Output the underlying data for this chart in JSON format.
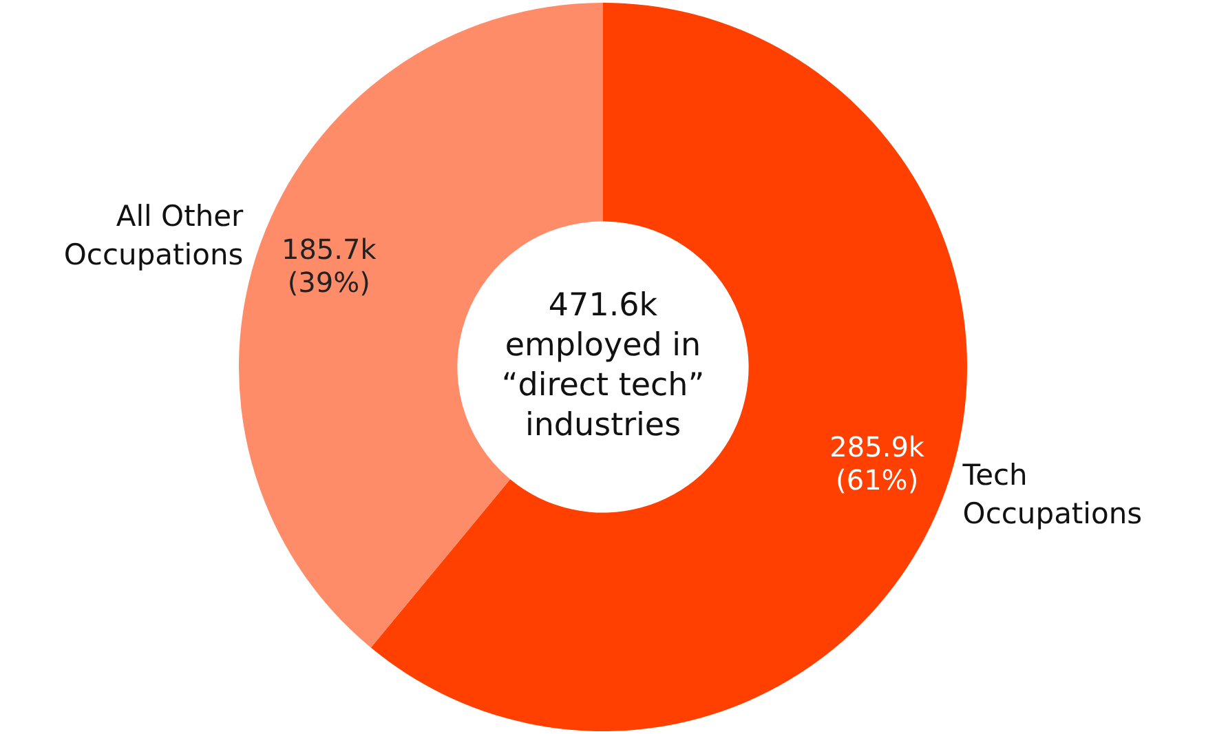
{
  "chart_data": {
    "type": "donut",
    "categories": [
      "Tech Occupations",
      "All Other Occupations"
    ],
    "values": [
      61,
      39
    ],
    "colors": [
      "#ff4000",
      "#ff8c69"
    ],
    "value_labels": [
      "285.9k (61%)",
      "185.7k (39%)"
    ],
    "annotations": [
      "471.6k employed in “direct tech” industries"
    ]
  }
}
